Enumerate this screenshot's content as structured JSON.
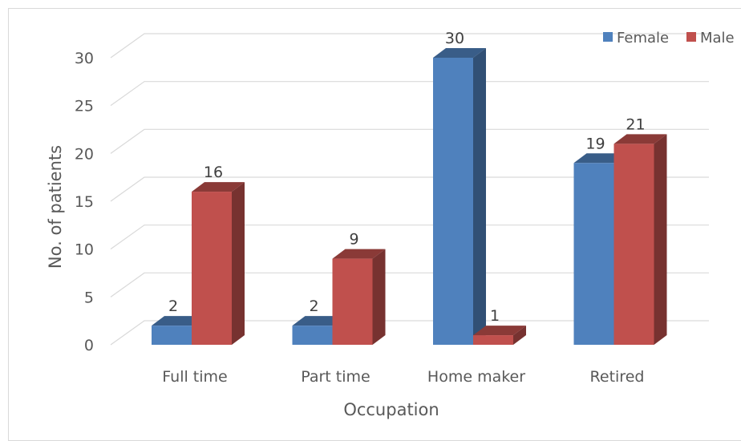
{
  "chart_data": {
    "type": "bar",
    "title": "",
    "xlabel": "Occupation",
    "ylabel": "No. of patients",
    "categories": [
      "Full time",
      "Part time",
      "Home maker",
      "Retired"
    ],
    "series": [
      {
        "name": "Female",
        "values": [
          2,
          2,
          30,
          19
        ],
        "color": "#4f81bd"
      },
      {
        "name": "Male",
        "values": [
          16,
          9,
          1,
          21
        ],
        "color": "#c0504d"
      }
    ],
    "ylim": [
      0,
      30
    ],
    "yticks": [
      0,
      5,
      10,
      15,
      20,
      25,
      30
    ],
    "grid": true,
    "legend_position": "top-right",
    "style": "3d-clustered-column"
  }
}
